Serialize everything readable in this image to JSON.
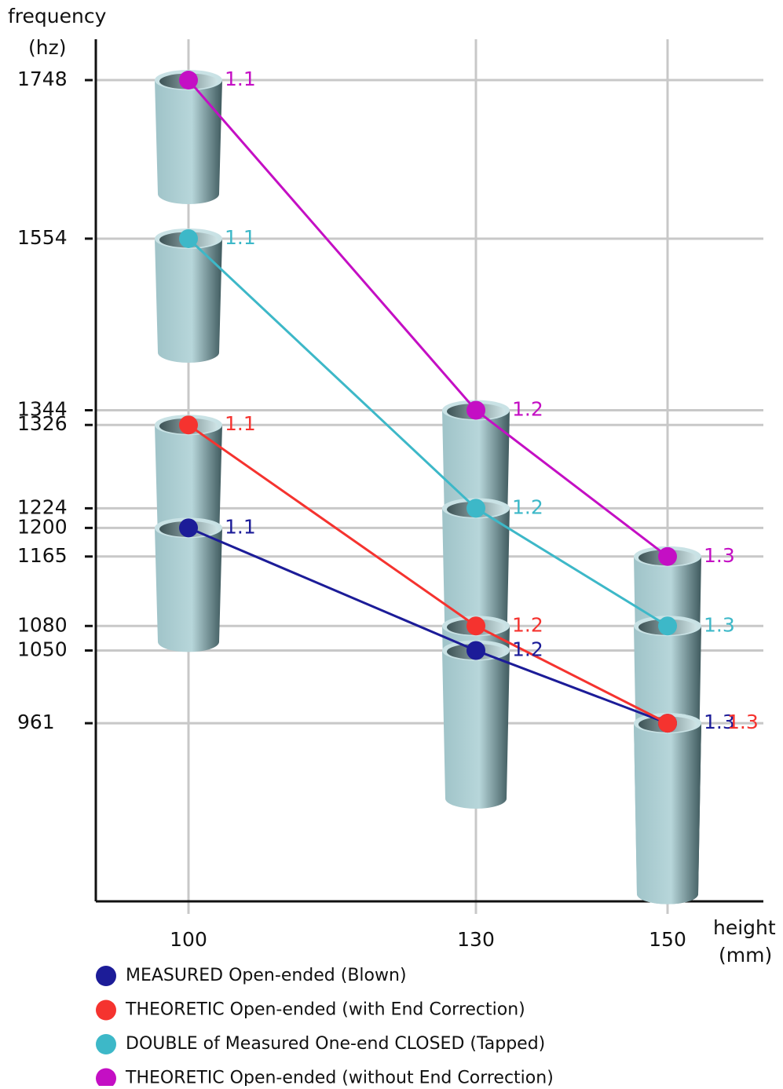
{
  "chart_data": {
    "type": "line",
    "y_label": [
      "frequency",
      "(hz)"
    ],
    "x_label": [
      "height",
      "(mm)"
    ],
    "x": [
      100,
      130,
      150
    ],
    "xlim": [
      90,
      160
    ],
    "xticks": [
      100,
      130,
      150
    ],
    "ylim": [
      743,
      1798
    ],
    "yticks": [
      961,
      1050,
      1080,
      1165,
      1200,
      1224,
      1326,
      1344,
      1554,
      1748
    ],
    "grid": true,
    "series": [
      {
        "name": "MEASURED Open-ended (Blown)",
        "color": "#1c1c98",
        "values": [
          1200,
          1050,
          961
        ],
        "labels": [
          "1.1",
          "1.2",
          "1.3"
        ]
      },
      {
        "name": "THEORETIC Open-ended (with End Correction)",
        "color": "#f5332f",
        "values": [
          1326,
          1080,
          961
        ],
        "labels": [
          "1.1",
          "1.2",
          "1.3"
        ]
      },
      {
        "name": "DOUBLE of Measured One-end CLOSED (Tapped)",
        "color": "#3db8c8",
        "values": [
          1554,
          1224,
          1080
        ],
        "labels": [
          "1.1",
          "1.2",
          "1.3"
        ]
      },
      {
        "name": "THEORETIC Open-ended (without End Correction)",
        "color": "#c40fc4",
        "values": [
          1748,
          1344,
          1165
        ],
        "labels": [
          "1.1",
          "1.2",
          "1.3"
        ]
      }
    ]
  }
}
